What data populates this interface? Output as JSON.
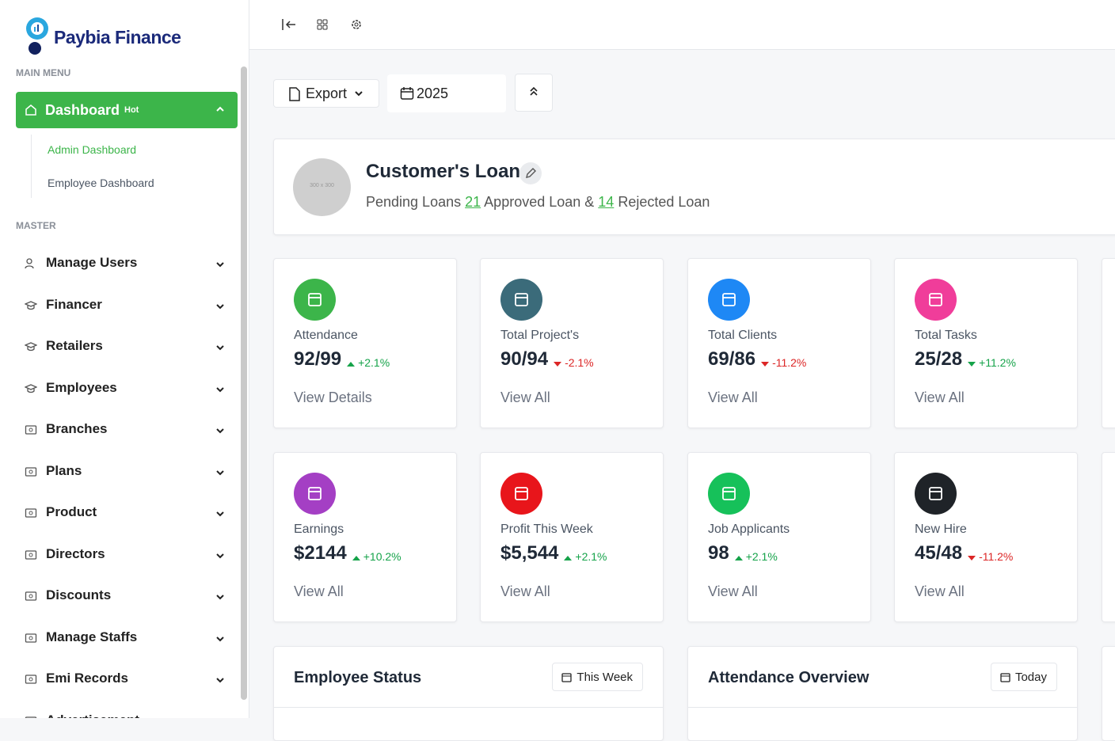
{
  "sidebar": {
    "brand": "Paybia Finance",
    "main_menu_title": "MAIN MENU",
    "dashboard": {
      "label": "Dashboard",
      "badge": "Hot",
      "submenu": [
        "Admin Dashboard",
        "Employee Dashboard"
      ]
    },
    "master_title": "MASTER",
    "master_items": [
      "Manage Users",
      "Financer",
      "Retailers",
      "Employees",
      "Branches",
      "Plans",
      "Product",
      "Directors",
      "Discounts",
      "Manage Staffs",
      "Emi Records",
      "Advertisement"
    ]
  },
  "toolbar": {
    "export": "Export",
    "year": "2025"
  },
  "loan": {
    "title": "Customer's Loan",
    "image_text": "300 x 300",
    "pending_text": "Pending Loans",
    "pending": "21",
    "approved_text": "Approved Loan &",
    "rejected": "14",
    "rejected_text": "Rejected Loan"
  },
  "stats": [
    {
      "label": "Attendance",
      "value": "92/99",
      "change": "+2.1%",
      "trend": "up",
      "tone": "good",
      "link": "View Details",
      "color": "#3cb54a"
    },
    {
      "label": "Total Project's",
      "value": "90/94",
      "change": "-2.1%",
      "trend": "down",
      "tone": "bad",
      "link": "View All",
      "color": "#3b6b7a"
    },
    {
      "label": "Total Clients",
      "value": "69/86",
      "change": "-11.2%",
      "trend": "down",
      "tone": "bad",
      "link": "View All",
      "color": "#1e88f5"
    },
    {
      "label": "Total Tasks",
      "value": "25/28",
      "change": "+11.2%",
      "trend": "down",
      "tone": "good",
      "link": "View All",
      "color": "#f03d9a"
    },
    {
      "label": "Earnings",
      "value": "$2144",
      "change": "+10.2%",
      "trend": "up",
      "tone": "good",
      "link": "View All",
      "color": "#a43fc4"
    },
    {
      "label": "Profit This Week",
      "value": "$5,544",
      "change": "+2.1%",
      "trend": "up",
      "tone": "good",
      "link": "View All",
      "color": "#e8151b"
    },
    {
      "label": "Job Applicants",
      "value": "98",
      "change": "+2.1%",
      "trend": "up",
      "tone": "good",
      "link": "View All",
      "color": "#16c15a"
    },
    {
      "label": "New Hire",
      "value": "45/48",
      "change": "-11.2%",
      "trend": "down",
      "tone": "bad",
      "link": "View All",
      "color": "#1f2328"
    }
  ],
  "panels": [
    {
      "title": "Employee Status",
      "button": "This Week"
    },
    {
      "title": "Attendance Overview",
      "button": "Today"
    }
  ]
}
